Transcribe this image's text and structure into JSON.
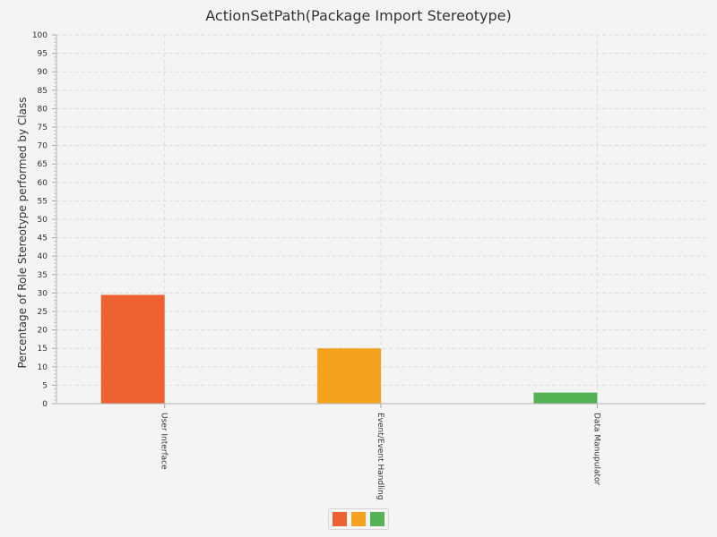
{
  "chart_data": {
    "type": "bar",
    "title": "ActionSetPath(Package Import Stereotype)",
    "xlabel": "",
    "ylabel": "Percentage of Role Stereotype performed by Class",
    "ylim": [
      0,
      100
    ],
    "ytick_step": 5,
    "grid": true,
    "categories": [
      "User Interface",
      "Event/Event Handling",
      "Data Manupulator"
    ],
    "series": [
      {
        "values": [
          29.5,
          15,
          3
        ]
      },
      {
        "values": [
          0,
          0,
          0
        ]
      }
    ],
    "bar_colors": [
      "#ee6130",
      "#f5a31f",
      "#54b254"
    ],
    "legend": {
      "placement": "bottom",
      "swatches": [
        "#ee6130",
        "#f5a31f",
        "#54b254"
      ]
    }
  }
}
